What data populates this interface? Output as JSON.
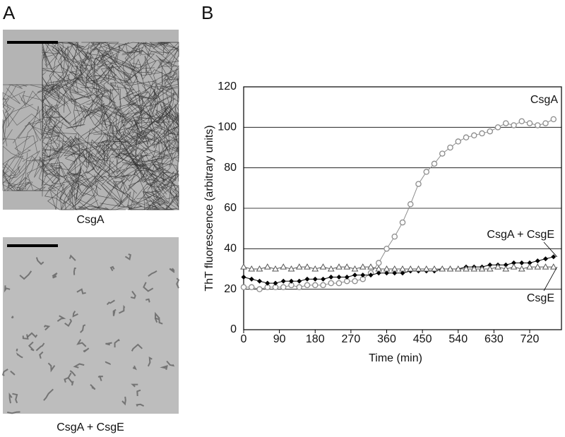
{
  "panels": {
    "a": {
      "label": "A",
      "captions": [
        "CsgA",
        "CsgA + CsgE"
      ]
    },
    "b": {
      "label": "B"
    }
  },
  "chart_data": {
    "type": "line",
    "xlabel": "Time (min)",
    "ylabel": "ThT fluorescence (arbitrary units)",
    "x": [
      0,
      20,
      40,
      60,
      80,
      100,
      120,
      140,
      160,
      180,
      200,
      220,
      240,
      260,
      280,
      300,
      320,
      340,
      360,
      380,
      400,
      420,
      440,
      460,
      480,
      500,
      520,
      540,
      560,
      580,
      600,
      620,
      640,
      660,
      680,
      700,
      720,
      740,
      760,
      780
    ],
    "series": [
      {
        "name": "CsgA",
        "color": "#8c8c8c",
        "marker": "circle",
        "values": [
          21,
          21,
          20,
          21,
          21,
          21,
          22,
          21,
          22,
          22,
          22,
          23,
          23,
          24,
          24,
          25,
          28,
          33,
          40,
          46,
          53,
          62,
          72,
          78,
          82,
          87,
          90,
          93,
          95,
          96,
          97,
          98,
          100,
          102,
          101,
          103,
          102,
          101,
          102,
          104
        ]
      },
      {
        "name": "CsgA + CsgE",
        "color": "#000000",
        "marker": "diamond",
        "values": [
          26,
          25,
          24,
          23,
          23,
          24,
          24,
          24,
          25,
          25,
          25,
          26,
          26,
          26,
          27,
          27,
          27,
          28,
          28,
          28,
          28,
          29,
          29,
          29,
          29,
          30,
          30,
          30,
          31,
          31,
          31,
          32,
          32,
          32,
          33,
          33,
          33,
          34,
          35,
          36
        ]
      },
      {
        "name": "CsgE",
        "color": "#555555",
        "marker": "triangle",
        "values": [
          31,
          30,
          30,
          31,
          30,
          31,
          30,
          31,
          31,
          30,
          31,
          30,
          31,
          31,
          30,
          31,
          31,
          30,
          30,
          30,
          30,
          30,
          30,
          30,
          30,
          30,
          30,
          30,
          30,
          30,
          30,
          30,
          31,
          30,
          31,
          30,
          31,
          31,
          31,
          31
        ]
      }
    ],
    "xlim": [
      0,
      800
    ],
    "xticks": [
      0,
      90,
      180,
      270,
      360,
      450,
      540,
      630,
      720
    ],
    "ylim": [
      0,
      120
    ],
    "yticks": [
      0,
      20,
      40,
      60,
      80,
      100,
      120
    ],
    "grid": true
  }
}
